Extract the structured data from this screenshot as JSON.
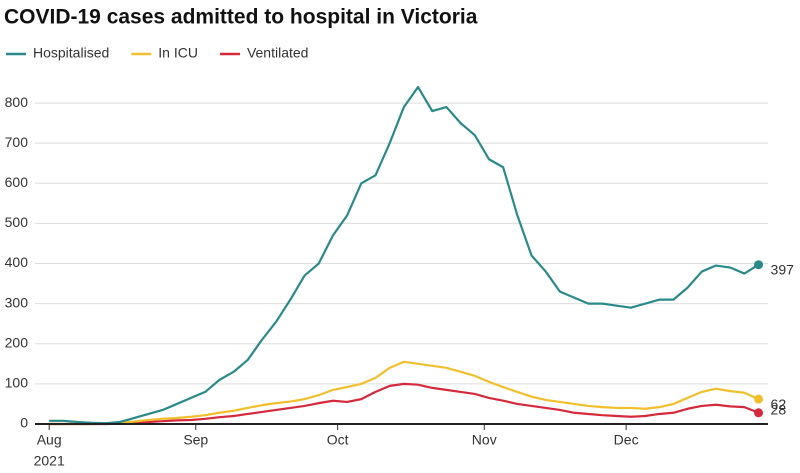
{
  "chart_data": {
    "type": "line",
    "title": "COVID-19 cases admitted to hospital in Victoria",
    "x": [
      0,
      3,
      6,
      9,
      12,
      15,
      18,
      21,
      24,
      27,
      30,
      33,
      36,
      39,
      42,
      45,
      48,
      51,
      54,
      57,
      60,
      63,
      66,
      69,
      72,
      75,
      78,
      81,
      84,
      87,
      90,
      93,
      96,
      99,
      102,
      105,
      108,
      111,
      114,
      117,
      120,
      123,
      126,
      129,
      132,
      135,
      138,
      141,
      144,
      147,
      150
    ],
    "series": [
      {
        "name": "Hospitalised",
        "color": "#2a8a8a",
        "values": [
          8,
          8,
          5,
          3,
          2,
          5,
          15,
          25,
          35,
          50,
          65,
          80,
          110,
          130,
          160,
          210,
          255,
          310,
          370,
          400,
          470,
          520,
          600,
          620,
          700,
          790,
          840,
          780,
          790,
          750,
          720,
          660,
          640,
          520,
          420,
          380,
          330,
          315,
          300,
          300,
          295,
          290,
          300,
          310,
          310,
          340,
          380,
          395,
          390,
          375,
          397
        ]
      },
      {
        "name": "In ICU",
        "color": "#f2bf2c",
        "values": [
          0,
          0,
          0,
          0,
          1,
          3,
          6,
          10,
          13,
          15,
          18,
          22,
          28,
          33,
          40,
          47,
          52,
          56,
          62,
          72,
          85,
          92,
          100,
          115,
          140,
          155,
          150,
          145,
          140,
          130,
          120,
          105,
          92,
          80,
          68,
          60,
          55,
          50,
          45,
          42,
          40,
          40,
          38,
          42,
          50,
          65,
          80,
          88,
          82,
          78,
          62
        ]
      },
      {
        "name": "Ventilated",
        "color": "#d42a3c",
        "values": [
          0,
          0,
          0,
          0,
          0,
          1,
          3,
          5,
          7,
          9,
          10,
          13,
          17,
          20,
          25,
          30,
          35,
          40,
          45,
          52,
          58,
          55,
          62,
          80,
          95,
          100,
          98,
          90,
          85,
          80,
          75,
          65,
          58,
          50,
          45,
          40,
          35,
          28,
          25,
          22,
          20,
          18,
          20,
          25,
          28,
          38,
          45,
          48,
          44,
          42,
          28
        ]
      }
    ],
    "xlim": [
      -3,
      152
    ],
    "xticks": [
      {
        "value": 0,
        "label": "Aug"
      },
      {
        "value": 31,
        "label": "Sep"
      },
      {
        "value": 61,
        "label": "Oct"
      },
      {
        "value": 92,
        "label": "Nov"
      },
      {
        "value": 122,
        "label": "Dec"
      }
    ],
    "xtick_year": "2021",
    "ylim": [
      0,
      860
    ],
    "yticks": [
      0,
      100,
      200,
      300,
      400,
      500,
      600,
      700,
      800
    ],
    "grid": true
  }
}
